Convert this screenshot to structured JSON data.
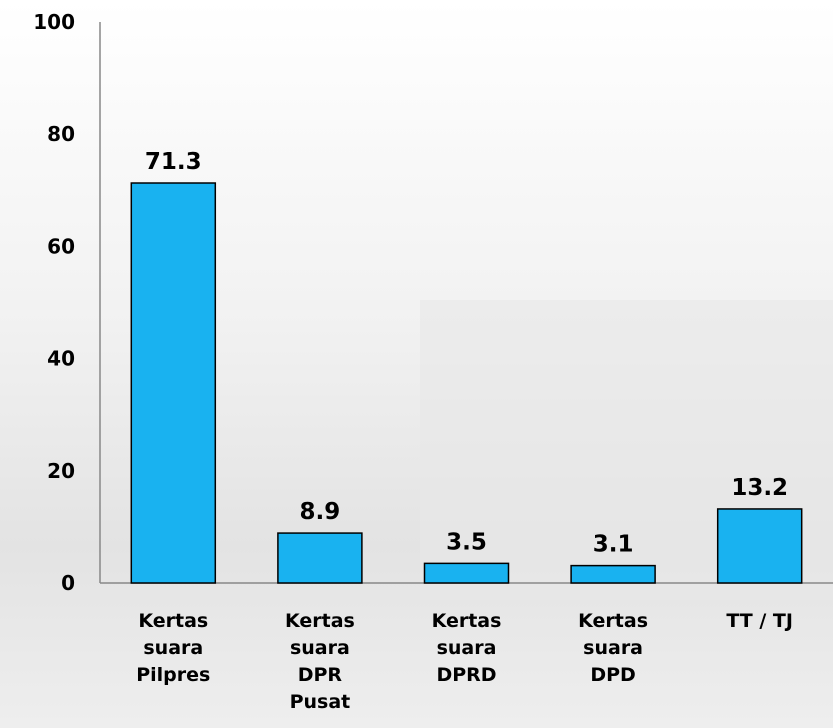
{
  "chart_data": {
    "type": "bar",
    "categories": [
      [
        "Kertas",
        "suara",
        "Pilpres"
      ],
      [
        "Kertas",
        "suara",
        "DPR",
        "Pusat"
      ],
      [
        "Kertas",
        "suara",
        "DPRD"
      ],
      [
        "Kertas",
        "suara",
        "DPD"
      ],
      [
        "TT / TJ"
      ]
    ],
    "values": [
      71.3,
      8.9,
      3.5,
      3.1,
      13.2
    ],
    "color": "#19b2f0",
    "ylim": [
      0,
      100
    ],
    "yticks": [
      0,
      20,
      40,
      60,
      80,
      100
    ],
    "grid": false
  }
}
